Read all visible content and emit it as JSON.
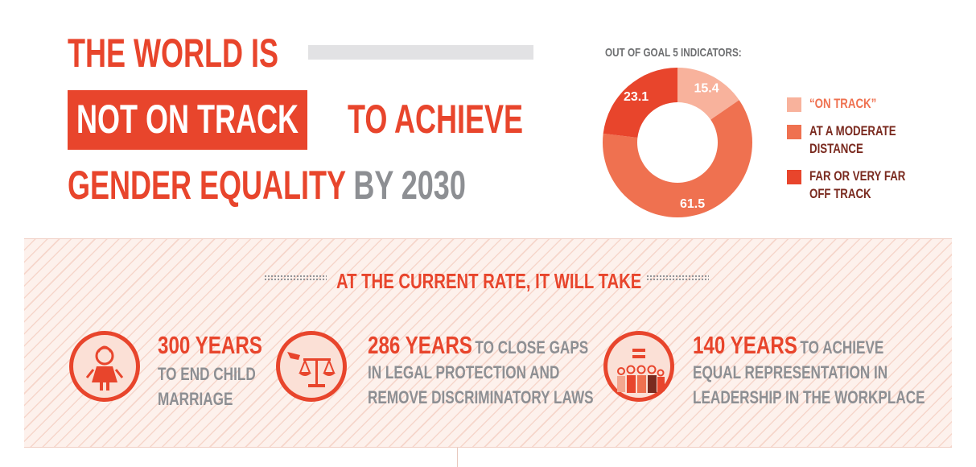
{
  "headline": {
    "line1": "THE WORLD IS",
    "line2_highlight": "NOT ON TRACK",
    "line2_rest": "TO ACHIEVE",
    "line3_main": "GENDER EQUALITY",
    "line3_grey": "BY 2030"
  },
  "colors": {
    "accent": "#e8452c",
    "grey_text": "#8d8f93",
    "dark_text": "#7a2a1f",
    "on_track": "#f8b29c",
    "moderate": "#ef7150",
    "far": "#e8452c"
  },
  "chart_data": {
    "type": "pie",
    "title": "OUT OF GOAL 5 INDICATORS:",
    "donut": true,
    "slices": [
      {
        "label": "“ON TRACK”",
        "value": 15.4,
        "color": "#f8b29c"
      },
      {
        "label": "AT A MODERATE\nDISTANCE",
        "value": 61.5,
        "color": "#ef7150"
      },
      {
        "label": "FAR OR VERY FAR\nOFF TRACK",
        "value": 23.1,
        "color": "#e8452c"
      }
    ],
    "legend_position": "right"
  },
  "rate": {
    "title": "AT THE CURRENT RATE, IT WILL TAKE"
  },
  "items": [
    {
      "icon": "child-bride-icon",
      "years": "300 YEARS",
      "lead": "",
      "lines": [
        "TO END CHILD",
        "MARRIAGE"
      ]
    },
    {
      "icon": "scales-of-justice-icon",
      "years": "286 YEARS",
      "lead": "TO CLOSE GAPS",
      "lines": [
        "IN LEGAL PROTECTION AND",
        "REMOVE DISCRIMINATORY LAWS"
      ]
    },
    {
      "icon": "equal-representation-icon",
      "years": "140 YEARS",
      "lead": "TO ACHIEVE",
      "lines": [
        "EQUAL REPRESENTATION IN",
        "LEADERSHIP IN THE WORKPLACE"
      ]
    }
  ]
}
